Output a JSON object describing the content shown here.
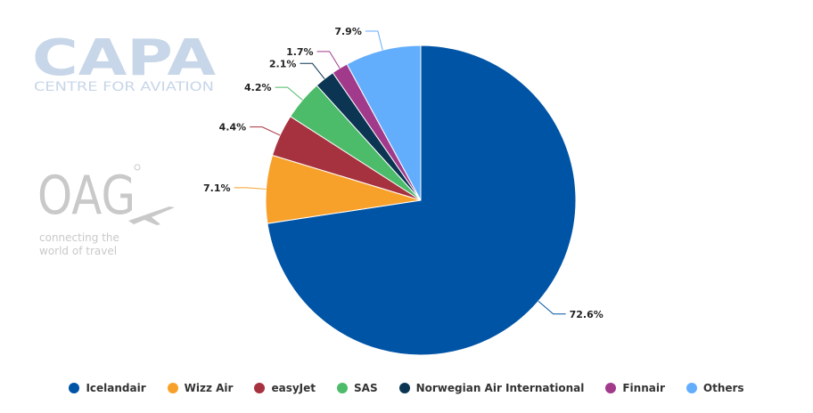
{
  "logos": {
    "capa": {
      "main": "CAPA",
      "sub": "CENTRE FOR AVIATION"
    },
    "oag": {
      "main": "OAG",
      "tagline_line1": "connecting the",
      "tagline_line2": "world of travel"
    }
  },
  "chart_data": {
    "type": "pie",
    "title": "",
    "start_angle_deg": 0,
    "direction": "clockwise",
    "legend_position": "bottom",
    "slices": [
      {
        "name": "Icelandair",
        "value": 72.6,
        "label": "72.6%",
        "color": "#0054a6"
      },
      {
        "name": "Wizz Air",
        "value": 7.1,
        "label": "7.1%",
        "color": "#f7a12b"
      },
      {
        "name": "easyJet",
        "value": 4.4,
        "label": "4.4%",
        "color": "#a6323f"
      },
      {
        "name": "SAS",
        "value": 4.2,
        "label": "4.2%",
        "color": "#4cbb6a"
      },
      {
        "name": "Norwegian Air International",
        "value": 2.1,
        "label": "2.1%",
        "color": "#0b3552"
      },
      {
        "name": "Finnair",
        "value": 1.7,
        "label": "1.7%",
        "color": "#a23a8c"
      },
      {
        "name": "Others",
        "value": 7.9,
        "label": "7.9%",
        "color": "#63aefc"
      }
    ]
  }
}
